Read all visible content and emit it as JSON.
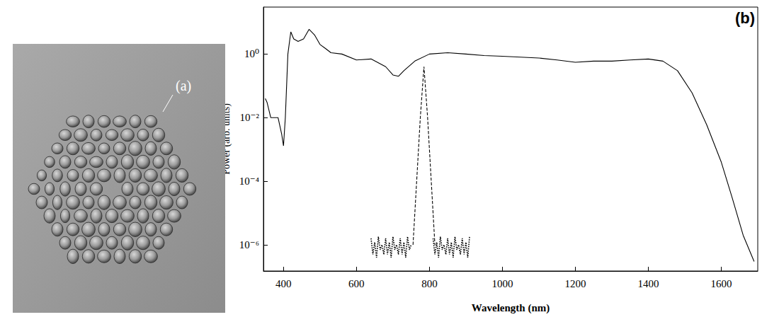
{
  "image_panel": {
    "label": "(a)"
  },
  "chart_data": {
    "type": "line",
    "annotations": [
      "(b)"
    ],
    "x_label": "Wavelength (nm)",
    "y_label": "Power (arb. units)",
    "log": "y",
    "grid": false,
    "xlim": [
      345,
      1700
    ],
    "xticks": [
      400,
      600,
      800,
      1000,
      1200,
      1400,
      1600
    ],
    "ylim": [
      1.5e-07,
      30
    ],
    "yticks": [
      {
        "value": 1,
        "label": "10⁰"
      },
      {
        "value": 0.01,
        "label": "10⁻²"
      },
      {
        "value": 0.0001,
        "label": "10⁻⁴"
      },
      {
        "value": 1e-06,
        "label": "10⁻⁶"
      }
    ],
    "series": [
      {
        "type": "line",
        "color": "#000000",
        "line_style": "solid",
        "x": [
          350,
          355,
          365,
          385,
          395,
          400,
          405,
          412,
          420,
          428,
          440,
          455,
          470,
          485,
          500,
          515,
          530,
          560,
          600,
          640,
          680,
          700,
          715,
          730,
          760,
          800,
          850,
          900,
          950,
          1000,
          1050,
          1100,
          1150,
          1200,
          1250,
          1300,
          1350,
          1400,
          1440,
          1480,
          1520,
          1560,
          1600,
          1630,
          1660,
          1690
        ],
        "values": [
          0.04,
          0.03,
          0.01,
          0.01,
          0.003,
          0.0013,
          0.01,
          1,
          5,
          3,
          2.5,
          3,
          6,
          4,
          2,
          1.5,
          1.1,
          1.0,
          0.65,
          0.7,
          0.4,
          0.22,
          0.2,
          0.3,
          0.6,
          1.0,
          1.1,
          1.0,
          0.9,
          0.85,
          0.8,
          0.75,
          0.65,
          0.55,
          0.6,
          0.6,
          0.65,
          0.7,
          0.6,
          0.3,
          0.06,
          0.006,
          0.0004,
          3e-05,
          2e-06,
          3e-07
        ]
      },
      {
        "type": "line",
        "color": "#000000",
        "line_style": "dashed",
        "x": [
          755,
          765,
          775,
          785,
          795,
          805,
          815
        ],
        "values": [
          1e-06,
          0.0001,
          0.01,
          0.4,
          0.01,
          0.0001,
          1e-06
        ]
      },
      {
        "type": "line",
        "color": "#000000",
        "line_style": "dotted",
        "x": [
          640,
          645,
          650,
          655,
          660,
          665,
          670,
          675,
          680,
          685,
          690,
          695,
          700,
          705,
          710,
          715,
          720,
          725,
          730,
          735,
          740,
          745,
          750,
          780,
          810,
          815,
          820,
          825,
          830,
          835,
          840,
          845,
          850,
          855,
          860,
          865,
          870,
          875,
          880,
          885,
          890,
          895,
          900,
          905,
          910
        ],
        "values": [
          1.6e-06,
          5e-07,
          1.2e-06,
          4e-07,
          1.8e-06,
          7e-07,
          1e-06,
          5e-07,
          1.6e-06,
          5e-07,
          1.2e-06,
          4e-07,
          1.8e-06,
          7e-07,
          1e-06,
          5e-07,
          1.6e-06,
          5e-07,
          1.2e-06,
          4e-07,
          1.8e-06,
          7e-07,
          1e-06,
          null,
          1.6e-06,
          5e-07,
          1.2e-06,
          4e-07,
          1.8e-06,
          7e-07,
          1e-06,
          5e-07,
          1.6e-06,
          5e-07,
          1.2e-06,
          4e-07,
          1.8e-06,
          7e-07,
          1e-06,
          5e-07,
          1.6e-06,
          5e-07,
          1.2e-06,
          4e-07,
          1.8e-06
        ]
      }
    ]
  }
}
